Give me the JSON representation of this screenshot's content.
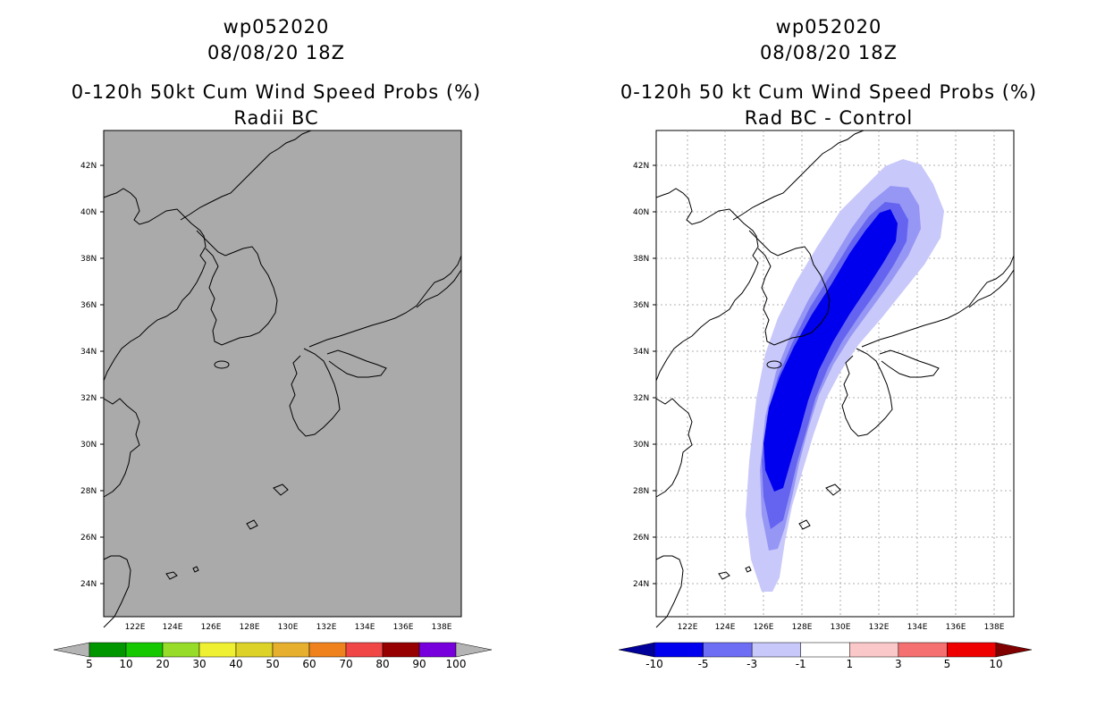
{
  "left": {
    "storm": "wp052020",
    "time": "08/08/20 18Z",
    "product": "0-120h 50kt Cum Wind Speed Probs (%)",
    "subtitle": "Radii BC",
    "colorbar": {
      "labels": [
        "5",
        "10",
        "20",
        "30",
        "40",
        "50",
        "60",
        "70",
        "80",
        "90",
        "100"
      ],
      "colors": [
        "#009600",
        "#16c800",
        "#96dc28",
        "#f0f032",
        "#dcd228",
        "#e6af2d",
        "#f0821e",
        "#f04646",
        "#960000",
        "#7800dc"
      ],
      "under_color": "#b4b4b4",
      "over_color": "#b4b4b4"
    },
    "map_fill": "#aaaaaa"
  },
  "right": {
    "storm": "wp052020",
    "time": "08/08/20 18Z",
    "product": "0-120h 50 kt Cum Wind Speed Probs (%)",
    "subtitle": "Rad BC - Control",
    "colorbar": {
      "labels": [
        "-10",
        "-5",
        "-3",
        "-1",
        "1",
        "3",
        "5",
        "10"
      ],
      "colors": [
        "#0000ee",
        "#6e6ef5",
        "#c8c8fa",
        "#ffffff",
        "#fac8c8",
        "#f57070",
        "#ee0000"
      ],
      "under_color": "#00009a",
      "over_color": "#800000"
    },
    "map_fill": "#ffffff",
    "contour_colors": [
      "#c8c8fa",
      "#9696f5",
      "#6464f0",
      "#0000ee"
    ]
  },
  "axes": {
    "lat_labels": [
      "42N",
      "40N",
      "38N",
      "36N",
      "34N",
      "32N",
      "30N",
      "28N",
      "26N",
      "24N"
    ],
    "lon_labels": [
      "122E",
      "124E",
      "126E",
      "128E",
      "130E",
      "132E",
      "134E",
      "136E",
      "138E"
    ]
  }
}
